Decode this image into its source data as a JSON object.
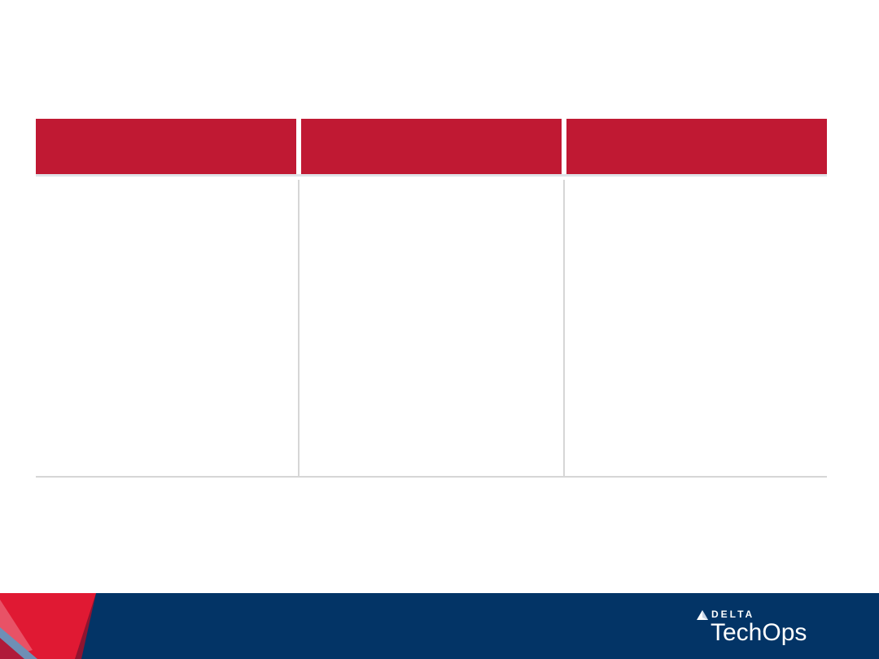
{
  "table": {
    "columns": [
      {
        "header": "",
        "body": ""
      },
      {
        "header": "",
        "body": ""
      },
      {
        "header": "",
        "body": ""
      }
    ]
  },
  "logo": {
    "brand": "DELTA",
    "product": "TechOps",
    "mark_icon": "delta-triangle-icon"
  },
  "colors": {
    "header_red": "#c01933",
    "footer_navy": "#033466",
    "logo_red": "#e01933",
    "logo_dark_red": "#8f1430"
  }
}
